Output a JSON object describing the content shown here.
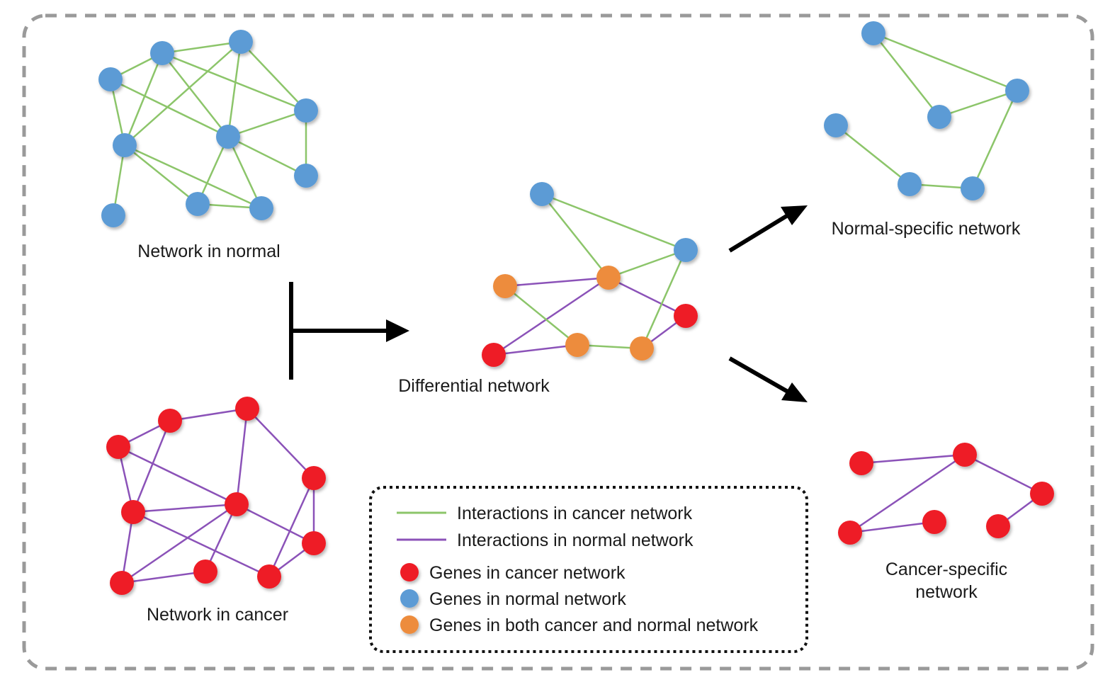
{
  "colors": {
    "cancer_node": "#ee1c25",
    "normal_node": "#5b9bd5",
    "both_node": "#ed8c3c",
    "cancer_edge": "#8cc56a",
    "normal_edge": "#8b52b8",
    "frame": "#9a9a9a",
    "arrow": "#000000"
  },
  "labels": {
    "network_normal": "Network in normal",
    "network_cancer": "Network in cancer",
    "differential": "Differential network",
    "normal_specific": "Normal-specific network",
    "cancer_specific_line1": "Cancer-specific",
    "cancer_specific_line2": "network"
  },
  "legend": {
    "edge_cancer": "Interactions in cancer network",
    "edge_normal": "Interactions in normal network",
    "node_cancer": "Genes in cancer network",
    "node_normal": "Genes in normal network",
    "node_both": "Genes in both cancer and normal network"
  }
}
